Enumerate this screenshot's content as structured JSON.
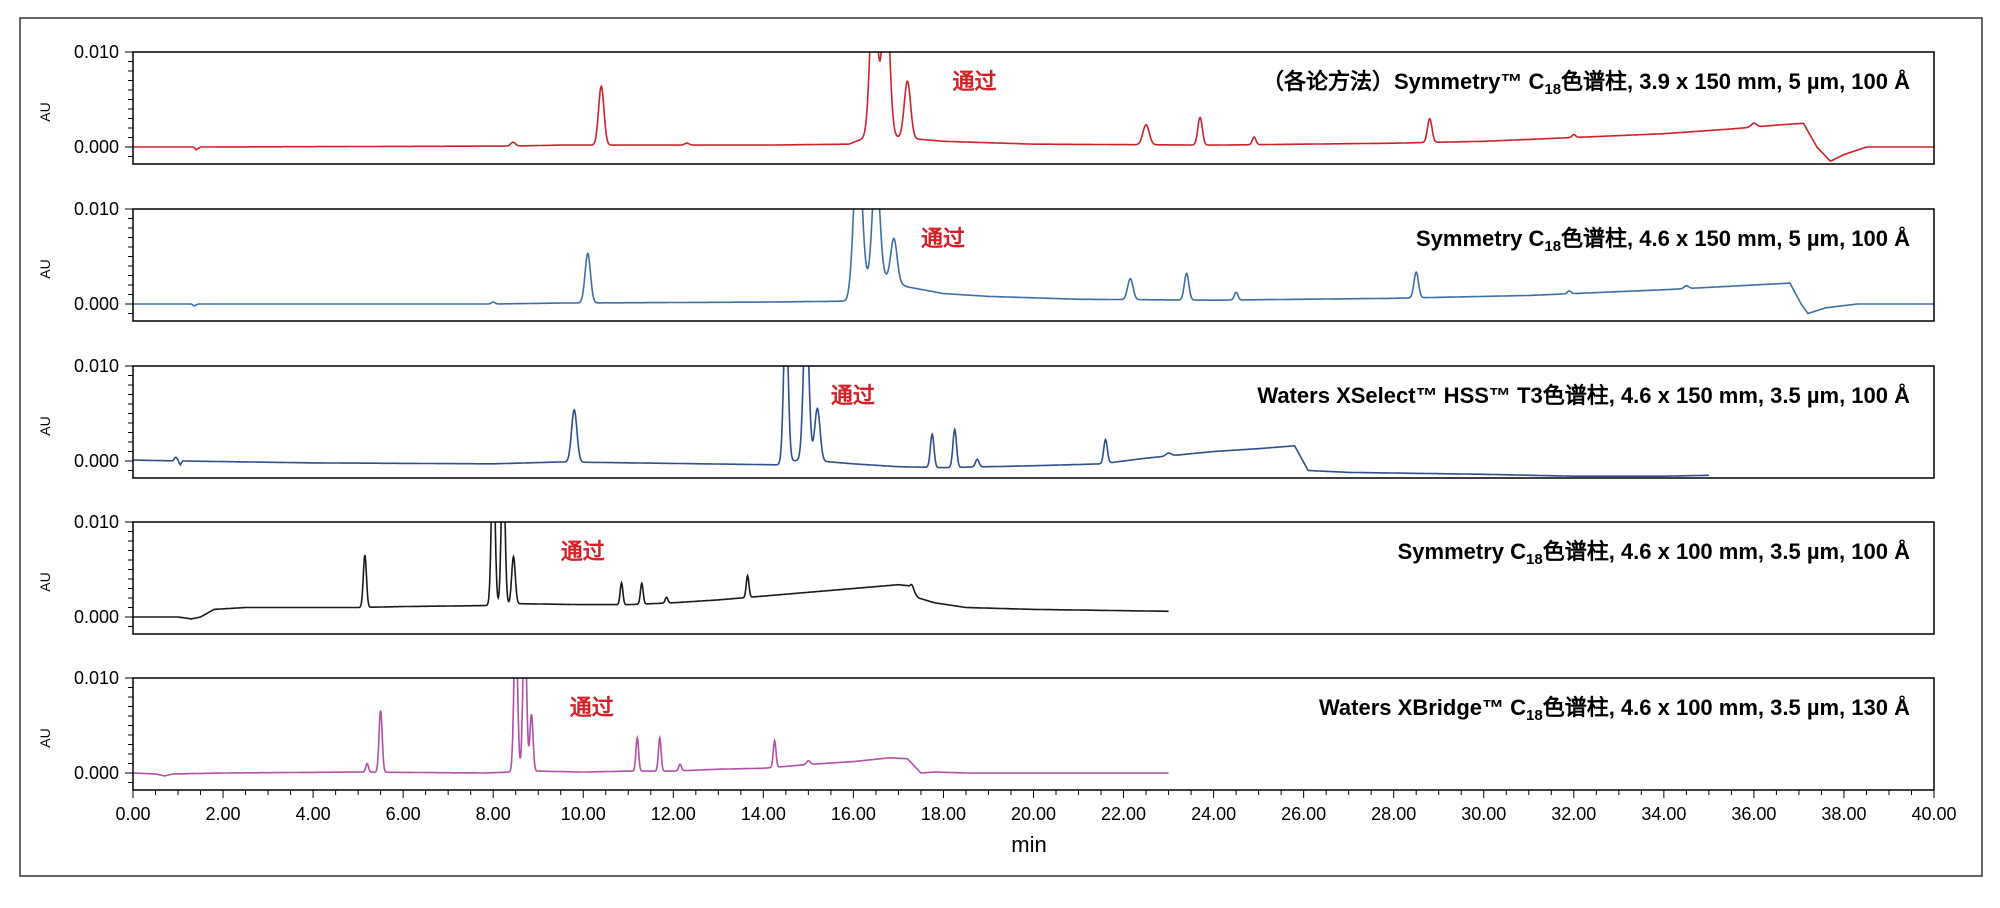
{
  "chart_data": {
    "type": "line",
    "xlabel": "min",
    "xlim": [
      0,
      40
    ],
    "x_ticks": [
      "0.00",
      "2.00",
      "4.00",
      "6.00",
      "8.00",
      "10.00",
      "12.00",
      "14.00",
      "16.00",
      "18.00",
      "20.00",
      "22.00",
      "24.00",
      "26.00",
      "28.00",
      "30.00",
      "32.00",
      "34.00",
      "36.00",
      "38.00",
      "40.00"
    ],
    "ylabel": "AU",
    "ylim": [
      -0.002,
      0.01
    ],
    "y_ticks": [
      "0.010",
      "0.000"
    ],
    "grid": false,
    "panels": [
      {
        "title_prefix": "（各论方法）Symmetry™ C",
        "title_sub": "18",
        "title_suffix": "色谱柱, 3.9 x 150 mm, 5 µm, 100 Å",
        "annotation": "通过",
        "annotation_x": 18.2,
        "annotation_color": "#d42027",
        "color": "#cc2228",
        "x_end": 40,
        "baseline": [
          [
            0,
            0
          ],
          [
            1.35,
            0
          ],
          [
            1.4,
            -0.0003
          ],
          [
            1.5,
            0
          ],
          [
            8.4,
            0.0001
          ],
          [
            9.5,
            0.0002
          ],
          [
            14,
            0.0002
          ],
          [
            15.9,
            0.0003
          ],
          [
            16.5,
            0.0014
          ],
          [
            17,
            0.001
          ],
          [
            18,
            0.0006
          ],
          [
            20,
            0.0003
          ],
          [
            24,
            0.0002
          ],
          [
            28,
            0.0004
          ],
          [
            30,
            0.0006
          ],
          [
            32,
            0.001
          ],
          [
            34,
            0.0014
          ],
          [
            35.5,
            0.0019
          ],
          [
            36.5,
            0.0023
          ],
          [
            37.1,
            0.0025
          ],
          [
            37.4,
            0.0
          ],
          [
            37.7,
            -0.0015
          ],
          [
            38,
            -0.0008
          ],
          [
            38.5,
            0.0
          ],
          [
            40,
            0.0
          ]
        ],
        "peaks": [
          {
            "x": 8.44,
            "h": 0.0004,
            "w": 0.05
          },
          {
            "x": 10.4,
            "h": 0.0062,
            "w": 0.06
          },
          {
            "x": 12.3,
            "h": 0.0002,
            "w": 0.05
          },
          {
            "x": 16.45,
            "h": 0.016,
            "w": 0.08
          },
          {
            "x": 16.72,
            "h": 0.016,
            "w": 0.08
          },
          {
            "x": 17.2,
            "h": 0.006,
            "w": 0.07
          },
          {
            "x": 22.5,
            "h": 0.0021,
            "w": 0.07
          },
          {
            "x": 23.7,
            "h": 0.0029,
            "w": 0.05
          },
          {
            "x": 24.9,
            "h": 0.0008,
            "w": 0.04
          },
          {
            "x": 28.8,
            "h": 0.0025,
            "w": 0.05
          },
          {
            "x": 32.0,
            "h": 0.0003,
            "w": 0.04
          },
          {
            "x": 36.0,
            "h": 0.0004,
            "w": 0.06
          }
        ]
      },
      {
        "title_prefix": "Symmetry C",
        "title_sub": "18",
        "title_suffix": "色谱柱, 4.6 x 150 mm, 5 µm, 100 Å",
        "annotation": "通过",
        "annotation_x": 17.5,
        "annotation_color": "#d42027",
        "color": "#3e6fa3",
        "x_end": 40,
        "baseline": [
          [
            0,
            0
          ],
          [
            1.3,
            0
          ],
          [
            1.35,
            -0.0002
          ],
          [
            1.45,
            0
          ],
          [
            8.0,
            0.0
          ],
          [
            9.5,
            0.0001
          ],
          [
            14,
            0.0002
          ],
          [
            15.85,
            0.0003
          ],
          [
            16.6,
            0.003
          ],
          [
            17.2,
            0.0018
          ],
          [
            18,
            0.0011
          ],
          [
            19,
            0.0008
          ],
          [
            21,
            0.0005
          ],
          [
            24,
            0.0004
          ],
          [
            28,
            0.0006
          ],
          [
            31,
            0.0009
          ],
          [
            34,
            0.0015
          ],
          [
            36,
            0.002
          ],
          [
            36.8,
            0.0022
          ],
          [
            37.05,
            0.0
          ],
          [
            37.2,
            -0.001
          ],
          [
            37.6,
            -0.0004
          ],
          [
            38.3,
            0.0
          ],
          [
            40,
            0.0
          ]
        ],
        "peaks": [
          {
            "x": 8.0,
            "h": 0.0002,
            "w": 0.04
          },
          {
            "x": 10.1,
            "h": 0.0052,
            "w": 0.06
          },
          {
            "x": 16.1,
            "h": 0.016,
            "w": 0.09
          },
          {
            "x": 16.5,
            "h": 0.012,
            "w": 0.08
          },
          {
            "x": 16.9,
            "h": 0.0045,
            "w": 0.07
          },
          {
            "x": 22.15,
            "h": 0.0022,
            "w": 0.06
          },
          {
            "x": 23.4,
            "h": 0.0028,
            "w": 0.05
          },
          {
            "x": 24.5,
            "h": 0.0008,
            "w": 0.04
          },
          {
            "x": 28.5,
            "h": 0.0027,
            "w": 0.05
          },
          {
            "x": 31.9,
            "h": 0.0003,
            "w": 0.04
          },
          {
            "x": 34.5,
            "h": 0.0003,
            "w": 0.05
          }
        ]
      },
      {
        "title_prefix": "Waters XSelect™ HSS™ T3色谱柱, 4.6 x 150 mm, 3.5 µm, 100 Å",
        "title_sub": "",
        "title_suffix": "",
        "annotation": "通过",
        "annotation_x": 15.5,
        "annotation_color": "#d42027",
        "color": "#2d4f8c",
        "x_end": 35,
        "baseline": [
          [
            0,
            0.0001
          ],
          [
            1.0,
            0.0
          ],
          [
            1.05,
            -0.0004
          ],
          [
            1.1,
            0.0
          ],
          [
            4,
            -0.0002
          ],
          [
            8,
            -0.0003
          ],
          [
            9.5,
            -0.0001
          ],
          [
            14.3,
            -0.0004
          ],
          [
            14.6,
            0.0
          ],
          [
            15.0,
            0.0001
          ],
          [
            16,
            -0.0003
          ],
          [
            17,
            -0.0006
          ],
          [
            18,
            -0.0007
          ],
          [
            20,
            -0.0005
          ],
          [
            21.5,
            -0.0003
          ],
          [
            22.5,
            0.0003
          ],
          [
            24,
            0.001
          ],
          [
            25,
            0.0013
          ],
          [
            25.8,
            0.0016
          ],
          [
            25.95,
            0.0003
          ],
          [
            26.1,
            -0.001
          ],
          [
            27,
            -0.0012
          ],
          [
            30,
            -0.0014
          ],
          [
            32,
            -0.0016
          ],
          [
            34,
            -0.0016
          ],
          [
            35,
            -0.0015
          ]
        ],
        "peaks": [
          {
            "x": 0.95,
            "h": 0.0004,
            "w": 0.03
          },
          {
            "x": 9.8,
            "h": 0.0055,
            "w": 0.06
          },
          {
            "x": 14.5,
            "h": 0.016,
            "w": 0.05
          },
          {
            "x": 14.95,
            "h": 0.016,
            "w": 0.06
          },
          {
            "x": 15.2,
            "h": 0.0055,
            "w": 0.06
          },
          {
            "x": 17.75,
            "h": 0.0035,
            "w": 0.04
          },
          {
            "x": 18.25,
            "h": 0.004,
            "w": 0.04
          },
          {
            "x": 18.75,
            "h": 0.0008,
            "w": 0.04
          },
          {
            "x": 21.6,
            "h": 0.0025,
            "w": 0.04
          },
          {
            "x": 23.0,
            "h": 0.0003,
            "w": 0.06
          }
        ]
      },
      {
        "title_prefix": "Symmetry C",
        "title_sub": "18",
        "title_suffix": "色谱柱, 4.6 x 100 mm, 3.5 µm, 100 Å",
        "annotation": "通过",
        "annotation_x": 9.5,
        "annotation_color": "#d42027",
        "color": "#1a1a1a",
        "x_end": 23,
        "baseline": [
          [
            0,
            0.0
          ],
          [
            1.0,
            0.0
          ],
          [
            1.3,
            -0.0002
          ],
          [
            1.5,
            0.0
          ],
          [
            1.8,
            0.0008
          ],
          [
            2.5,
            0.001
          ],
          [
            5.0,
            0.001
          ],
          [
            6,
            0.0011
          ],
          [
            7.8,
            0.0012
          ],
          [
            8.6,
            0.0014
          ],
          [
            10,
            0.0013
          ],
          [
            11,
            0.0013
          ],
          [
            12,
            0.0015
          ],
          [
            13,
            0.0018
          ],
          [
            14,
            0.0022
          ],
          [
            15,
            0.0026
          ],
          [
            16,
            0.003
          ],
          [
            17.0,
            0.0034
          ],
          [
            17.2,
            0.0033
          ],
          [
            17.45,
            0.002
          ],
          [
            17.8,
            0.0015
          ],
          [
            18.5,
            0.001
          ],
          [
            20,
            0.0008
          ],
          [
            21.5,
            0.0007
          ],
          [
            23,
            0.0006
          ]
        ],
        "peaks": [
          {
            "x": 5.15,
            "h": 0.0055,
            "w": 0.035
          },
          {
            "x": 8.0,
            "h": 0.016,
            "w": 0.04
          },
          {
            "x": 8.22,
            "h": 0.016,
            "w": 0.04
          },
          {
            "x": 8.45,
            "h": 0.005,
            "w": 0.04
          },
          {
            "x": 10.85,
            "h": 0.0023,
            "w": 0.03
          },
          {
            "x": 11.3,
            "h": 0.0022,
            "w": 0.03
          },
          {
            "x": 11.85,
            "h": 0.0006,
            "w": 0.03
          },
          {
            "x": 13.65,
            "h": 0.0023,
            "w": 0.03
          },
          {
            "x": 17.3,
            "h": 0.0006,
            "w": 0.04
          }
        ]
      },
      {
        "title_prefix": "Waters XBridge™ C",
        "title_sub": "18",
        "title_suffix": "色谱柱, 4.6 x 100 mm, 3.5 µm, 130 Å",
        "annotation": "通过",
        "annotation_x": 9.7,
        "annotation_color": "#d42027",
        "color": "#b050a8",
        "x_end": 23,
        "baseline": [
          [
            0,
            0.0
          ],
          [
            0.5,
            -0.0001
          ],
          [
            0.7,
            -0.0003
          ],
          [
            0.9,
            -0.0001
          ],
          [
            2,
            0.0
          ],
          [
            5,
            0.0001
          ],
          [
            7.8,
            0.0
          ],
          [
            9,
            0.0002
          ],
          [
            10,
            0.0001
          ],
          [
            11,
            0.0002
          ],
          [
            12,
            0.0002
          ],
          [
            13,
            0.0004
          ],
          [
            14,
            0.0005
          ],
          [
            15,
            0.0009
          ],
          [
            16,
            0.0012
          ],
          [
            16.8,
            0.0016
          ],
          [
            17.2,
            0.0015
          ],
          [
            17.5,
            0.0
          ],
          [
            17.8,
            0.0001
          ],
          [
            18.5,
            0.0
          ],
          [
            23,
            0.0
          ]
        ],
        "peaks": [
          {
            "x": 5.2,
            "h": 0.0009,
            "w": 0.03
          },
          {
            "x": 5.5,
            "h": 0.0065,
            "w": 0.035
          },
          {
            "x": 8.5,
            "h": 0.016,
            "w": 0.04
          },
          {
            "x": 8.7,
            "h": 0.016,
            "w": 0.04
          },
          {
            "x": 8.85,
            "h": 0.006,
            "w": 0.035
          },
          {
            "x": 11.2,
            "h": 0.0035,
            "w": 0.03
          },
          {
            "x": 11.7,
            "h": 0.0035,
            "w": 0.03
          },
          {
            "x": 12.15,
            "h": 0.0007,
            "w": 0.03
          },
          {
            "x": 14.25,
            "h": 0.0028,
            "w": 0.03
          },
          {
            "x": 15.0,
            "h": 0.0004,
            "w": 0.04
          }
        ]
      }
    ]
  }
}
